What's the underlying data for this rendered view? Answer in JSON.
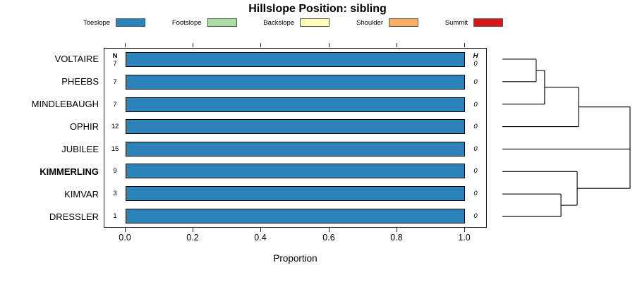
{
  "title": "Hillslope Position: sibling",
  "legend": {
    "items": [
      {
        "label": "Toeslope",
        "color": "#2B83BA"
      },
      {
        "label": "Footslope",
        "color": "#ABDDA4"
      },
      {
        "label": "Backslope",
        "color": "#FFFFBF"
      },
      {
        "label": "Shoulder",
        "color": "#FDAE61"
      },
      {
        "label": "Summit",
        "color": "#D7191C"
      }
    ]
  },
  "table": {
    "n_header": "N",
    "h_header": "H"
  },
  "axis": {
    "label": "Proportion",
    "ticks": [
      "0.0",
      "0.2",
      "0.4",
      "0.6",
      "0.8",
      "1.0"
    ]
  },
  "chart_data": {
    "type": "bar",
    "orientation": "horizontal",
    "stacked": true,
    "title": "Hillslope Position: sibling",
    "xlabel": "Proportion",
    "xlim": [
      0,
      1
    ],
    "xticks": [
      0.0,
      0.2,
      0.4,
      0.6,
      0.8,
      1.0
    ],
    "grid": false,
    "legend_position": "top",
    "categories": [
      "VOLTAIRE",
      "PHEEBS",
      "MINDLEBAUGH",
      "OPHIR",
      "JUBILEE",
      "KIMMERLING",
      "KIMVAR",
      "DRESSLER"
    ],
    "emphasized_category": "KIMMERLING",
    "series": [
      {
        "name": "Toeslope",
        "values": [
          1.0,
          1.0,
          1.0,
          1.0,
          1.0,
          1.0,
          1.0,
          1.0
        ]
      },
      {
        "name": "Footslope",
        "values": [
          0,
          0,
          0,
          0,
          0,
          0,
          0,
          0
        ]
      },
      {
        "name": "Backslope",
        "values": [
          0,
          0,
          0,
          0,
          0,
          0,
          0,
          0
        ]
      },
      {
        "name": "Shoulder",
        "values": [
          0,
          0,
          0,
          0,
          0,
          0,
          0,
          0
        ]
      },
      {
        "name": "Summit",
        "values": [
          0,
          0,
          0,
          0,
          0,
          0,
          0,
          0
        ]
      }
    ],
    "n_values": [
      7,
      7,
      7,
      12,
      15,
      9,
      3,
      1
    ],
    "h_values": [
      0,
      0,
      0,
      0,
      0,
      0,
      0,
      0
    ],
    "dendrogram": {
      "description": "hierarchical clustering of series; x normalized 0=leaf 1=root, y in row units",
      "segments": [
        {
          "x1": 0,
          "y1": 0,
          "x2": 0.265,
          "y2": 0
        },
        {
          "x1": 0,
          "y1": 1,
          "x2": 0.265,
          "y2": 1
        },
        {
          "x1": 0.265,
          "y1": 0,
          "x2": 0.265,
          "y2": 1
        },
        {
          "x1": 0.265,
          "y1": 0.5,
          "x2": 0.331,
          "y2": 0.5
        },
        {
          "x1": 0,
          "y1": 2,
          "x2": 0.331,
          "y2": 2
        },
        {
          "x1": 0.331,
          "y1": 0.5,
          "x2": 0.331,
          "y2": 2
        },
        {
          "x1": 0.331,
          "y1": 1.25,
          "x2": 0.597,
          "y2": 1.25
        },
        {
          "x1": 0,
          "y1": 3,
          "x2": 0.597,
          "y2": 3
        },
        {
          "x1": 0.597,
          "y1": 1.25,
          "x2": 0.597,
          "y2": 3
        },
        {
          "x1": 0.597,
          "y1": 2.125,
          "x2": 1.0,
          "y2": 2.125
        },
        {
          "x1": 0,
          "y1": 4,
          "x2": 1.0,
          "y2": 4
        },
        {
          "x1": 0,
          "y1": 5,
          "x2": 0.586,
          "y2": 5
        },
        {
          "x1": 0,
          "y1": 6,
          "x2": 0.459,
          "y2": 6
        },
        {
          "x1": 0,
          "y1": 7,
          "x2": 0.459,
          "y2": 7
        },
        {
          "x1": 0.459,
          "y1": 6,
          "x2": 0.459,
          "y2": 7
        },
        {
          "x1": 0.459,
          "y1": 6.5,
          "x2": 0.586,
          "y2": 6.5
        },
        {
          "x1": 0.586,
          "y1": 5,
          "x2": 0.586,
          "y2": 6.5
        },
        {
          "x1": 0.586,
          "y1": 5.75,
          "x2": 1.0,
          "y2": 5.75
        },
        {
          "x1": 1.0,
          "y1": 2.125,
          "x2": 1.0,
          "y2": 5.75
        }
      ]
    }
  }
}
